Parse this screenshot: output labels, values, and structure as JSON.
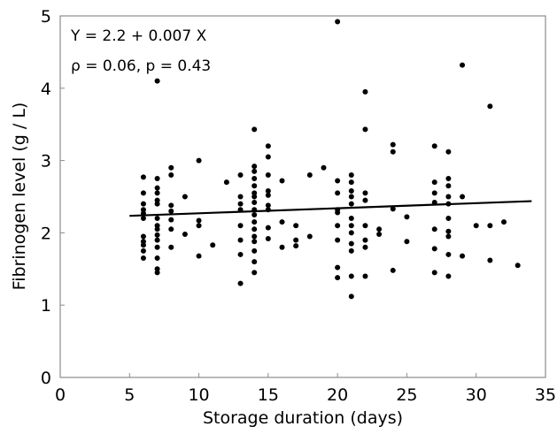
{
  "chart_data": {
    "type": "scatter",
    "title": "",
    "xlabel": "Storage duration (days)",
    "ylabel": "Fibrinogen level (g / L)",
    "xlim": [
      0,
      35
    ],
    "ylim": [
      0,
      5
    ],
    "xticks": [
      0,
      5,
      10,
      15,
      20,
      25,
      30,
      35
    ],
    "yticks": [
      0,
      1,
      2,
      3,
      4,
      5
    ],
    "grid": false,
    "annotations": [
      "Y = 2.2 + 0.007 X",
      "ρ = 0.06, p = 0.43"
    ],
    "regression_line": {
      "intercept": 2.2,
      "slope": 0.007,
      "x_range": [
        5,
        34
      ]
    },
    "colors": {
      "points": "#000000",
      "line": "#000000",
      "frame": "#8c8c8c"
    },
    "series": [
      {
        "points": [
          [
            6,
            2.77
          ],
          [
            6,
            2.55
          ],
          [
            6,
            2.4
          ],
          [
            6,
            2.32
          ],
          [
            6,
            2.27
          ],
          [
            6,
            2.2
          ],
          [
            6,
            1.95
          ],
          [
            6,
            1.88
          ],
          [
            6,
            1.83
          ],
          [
            6,
            1.75
          ],
          [
            6,
            1.65
          ],
          [
            7,
            4.1
          ],
          [
            7,
            2.75
          ],
          [
            7,
            2.62
          ],
          [
            7,
            2.55
          ],
          [
            7,
            2.45
          ],
          [
            7,
            2.4
          ],
          [
            7,
            2.2
          ],
          [
            7,
            2.1
          ],
          [
            7,
            2.05
          ],
          [
            7,
            1.97
          ],
          [
            7,
            1.9
          ],
          [
            7,
            1.8
          ],
          [
            7,
            1.65
          ],
          [
            7,
            1.5
          ],
          [
            7,
            1.45
          ],
          [
            8,
            2.9
          ],
          [
            8,
            2.8
          ],
          [
            8,
            2.38
          ],
          [
            8,
            2.3
          ],
          [
            8,
            2.18
          ],
          [
            8,
            2.05
          ],
          [
            8,
            1.8
          ],
          [
            9,
            2.5
          ],
          [
            9,
            1.98
          ],
          [
            10,
            3.0
          ],
          [
            10,
            2.17
          ],
          [
            10,
            2.1
          ],
          [
            10,
            1.68
          ],
          [
            11,
            1.83
          ],
          [
            12,
            2.7
          ],
          [
            13,
            2.8
          ],
          [
            13,
            2.5
          ],
          [
            13,
            2.4
          ],
          [
            13,
            2.32
          ],
          [
            13,
            2.1
          ],
          [
            13,
            1.9
          ],
          [
            13,
            1.7
          ],
          [
            13,
            1.3
          ],
          [
            14,
            3.43
          ],
          [
            14,
            2.92
          ],
          [
            14,
            2.85
          ],
          [
            14,
            2.75
          ],
          [
            14,
            2.65
          ],
          [
            14,
            2.55
          ],
          [
            14,
            2.5
          ],
          [
            14,
            2.42
          ],
          [
            14,
            2.32
          ],
          [
            14,
            2.25
          ],
          [
            14,
            2.15
          ],
          [
            14,
            2.05
          ],
          [
            14,
            1.95
          ],
          [
            14,
            1.88
          ],
          [
            14,
            1.75
          ],
          [
            14,
            1.6
          ],
          [
            14,
            1.45
          ],
          [
            15,
            3.2
          ],
          [
            15,
            3.05
          ],
          [
            15,
            2.8
          ],
          [
            15,
            2.58
          ],
          [
            15,
            2.52
          ],
          [
            15,
            2.38
          ],
          [
            15,
            2.32
          ],
          [
            15,
            2.07
          ],
          [
            15,
            1.92
          ],
          [
            16,
            2.72
          ],
          [
            16,
            2.15
          ],
          [
            16,
            1.8
          ],
          [
            17,
            2.1
          ],
          [
            17,
            1.9
          ],
          [
            17,
            1.82
          ],
          [
            18,
            2.8
          ],
          [
            18,
            1.95
          ],
          [
            19,
            2.9
          ],
          [
            20,
            4.92
          ],
          [
            20,
            2.72
          ],
          [
            20,
            2.55
          ],
          [
            20,
            2.32
          ],
          [
            20,
            2.28
          ],
          [
            20,
            2.1
          ],
          [
            20,
            1.9
          ],
          [
            20,
            1.52
          ],
          [
            20,
            1.38
          ],
          [
            21,
            2.8
          ],
          [
            21,
            2.7
          ],
          [
            21,
            2.58
          ],
          [
            21,
            2.5
          ],
          [
            21,
            2.4
          ],
          [
            21,
            2.2
          ],
          [
            21,
            2.1
          ],
          [
            21,
            2.0
          ],
          [
            21,
            1.85
          ],
          [
            21,
            1.75
          ],
          [
            21,
            1.4
          ],
          [
            21,
            1.12
          ],
          [
            22,
            3.95
          ],
          [
            22,
            3.43
          ],
          [
            22,
            2.55
          ],
          [
            22,
            2.45
          ],
          [
            22,
            2.1
          ],
          [
            22,
            1.9
          ],
          [
            22,
            1.8
          ],
          [
            22,
            1.4
          ],
          [
            23,
            2.05
          ],
          [
            23,
            1.98
          ],
          [
            24,
            3.22
          ],
          [
            24,
            3.12
          ],
          [
            24,
            2.33
          ],
          [
            24,
            1.48
          ],
          [
            25,
            2.22
          ],
          [
            25,
            1.88
          ],
          [
            27,
            3.2
          ],
          [
            27,
            2.7
          ],
          [
            27,
            2.55
          ],
          [
            27,
            2.42
          ],
          [
            27,
            2.05
          ],
          [
            27,
            1.78
          ],
          [
            27,
            1.45
          ],
          [
            28,
            3.12
          ],
          [
            28,
            2.75
          ],
          [
            28,
            2.65
          ],
          [
            28,
            2.5
          ],
          [
            28,
            2.4
          ],
          [
            28,
            2.2
          ],
          [
            28,
            2.02
          ],
          [
            28,
            1.95
          ],
          [
            28,
            1.7
          ],
          [
            28,
            1.4
          ],
          [
            29,
            4.32
          ],
          [
            29,
            2.5
          ],
          [
            29,
            1.68
          ],
          [
            30,
            2.1
          ],
          [
            31,
            3.75
          ],
          [
            31,
            2.1
          ],
          [
            31,
            1.62
          ],
          [
            32,
            2.15
          ],
          [
            33,
            1.55
          ]
        ]
      }
    ]
  }
}
